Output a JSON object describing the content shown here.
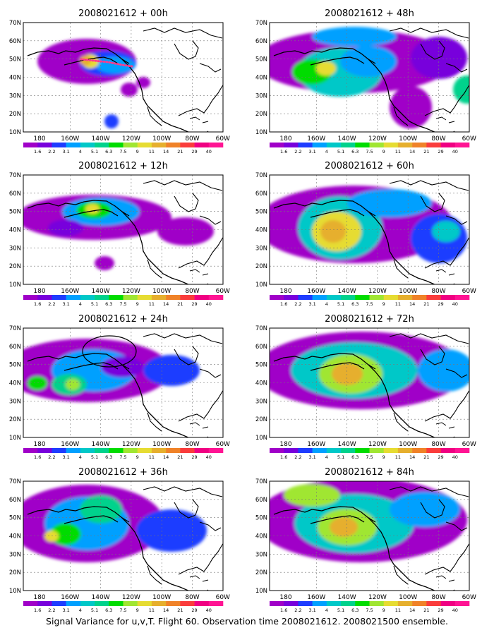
{
  "figure": {
    "caption": "Signal Variance for u,v,T. Flight 60. Observation time 2008021612. 2008021500 ensemble."
  },
  "axes": {
    "lat_ticks": [
      "70N",
      "60N",
      "50N",
      "40N",
      "30N",
      "20N",
      "10N"
    ],
    "lon_ticks": [
      "180",
      "160W",
      "140W",
      "120W",
      "100W",
      "80W",
      "60W"
    ]
  },
  "colorbar": {
    "labels": [
      "1.6",
      "2.2",
      "3.1",
      "4",
      "5.1",
      "6.3",
      "7.5",
      "9",
      "11",
      "14",
      "21",
      "29",
      "40"
    ],
    "colors": [
      "#a000c8",
      "#7800dc",
      "#1e3cff",
      "#00a0ff",
      "#00c8c8",
      "#00d28c",
      "#00dc00",
      "#a0e632",
      "#e6dc32",
      "#e6af2d",
      "#f08228",
      "#fa3c3c",
      "#f00082",
      "#ff1493"
    ]
  },
  "panels": [
    {
      "title": "2008021612 + 00h",
      "lead_hours": 0
    },
    {
      "title": "2008021612 + 48h",
      "lead_hours": 48
    },
    {
      "title": "2008021612 + 12h",
      "lead_hours": 12
    },
    {
      "title": "2008021612 + 60h",
      "lead_hours": 60
    },
    {
      "title": "2008021612 + 24h",
      "lead_hours": 24
    },
    {
      "title": "2008021612 + 72h",
      "lead_hours": 72
    },
    {
      "title": "2008021612 + 36h",
      "lead_hours": 36
    },
    {
      "title": "2008021612 + 84h",
      "lead_hours": 84
    }
  ],
  "map": {
    "lon_range": [
      -190,
      -60
    ],
    "lat_range": [
      10,
      70
    ],
    "grid": true,
    "annotations": {
      "flight_track_panel": "2008021612 + 00h",
      "flight_track_color": "#ff3c8c",
      "ellipse_panel": "2008021612 + 24h"
    }
  }
}
